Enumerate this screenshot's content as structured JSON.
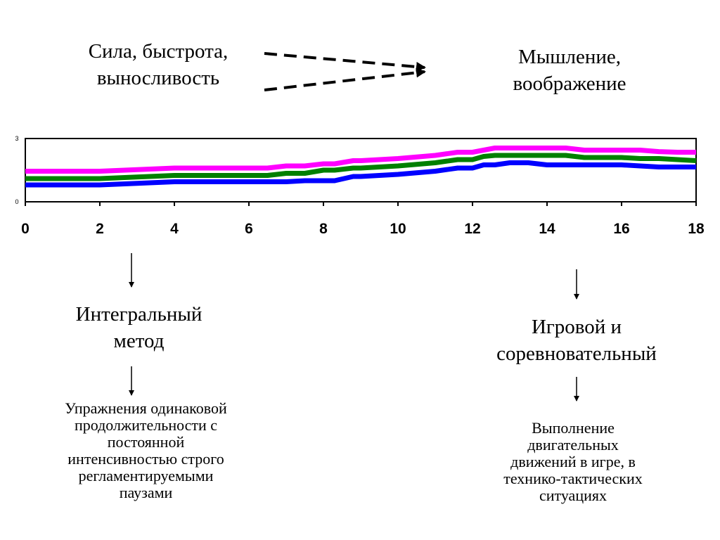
{
  "labels": {
    "top_left": [
      "Сила, быстрота,",
      "выносливость"
    ],
    "top_right": [
      "Мышление,",
      "воображение"
    ],
    "method_left": [
      "Интегральный",
      "метод"
    ],
    "method_right": [
      "Игровой и",
      "соревновательный"
    ],
    "desc_left": [
      "Упражнения одинаковой",
      "продолжительности с",
      "постоянной",
      "интенсивностью строго",
      "регламентируемыми",
      "паузами"
    ],
    "desc_right": [
      "Выполнение",
      "двигательных",
      "движений в игре, в",
      "технико-тактических",
      "ситуациях"
    ]
  },
  "chart_data": {
    "type": "line",
    "xlim": [
      0,
      18
    ],
    "ylim": [
      0,
      3
    ],
    "x_ticks": [
      "0",
      "2",
      "4",
      "6",
      "8",
      "10",
      "12",
      "14",
      "16",
      "18"
    ],
    "y_ticks": [
      "3",
      "0"
    ],
    "grid": false,
    "series": [
      {
        "color": "#ff00ff",
        "x": [
          0,
          2,
          4,
          6,
          6.5,
          7,
          7.5,
          8,
          8.3,
          8.8,
          9,
          10,
          11,
          11.6,
          12,
          12.3,
          12.6,
          13,
          13.5,
          14,
          14.5,
          15,
          15.5,
          16,
          16.5,
          17,
          17.5,
          18
        ],
        "y": [
          1.45,
          1.45,
          1.6,
          1.6,
          1.6,
          1.7,
          1.7,
          1.8,
          1.8,
          1.95,
          1.95,
          2.05,
          2.2,
          2.35,
          2.35,
          2.45,
          2.55,
          2.55,
          2.55,
          2.55,
          2.55,
          2.45,
          2.45,
          2.45,
          2.45,
          2.38,
          2.35,
          2.35
        ]
      },
      {
        "color": "#008000",
        "x": [
          0,
          2,
          4,
          6,
          6.5,
          7,
          7.5,
          8,
          8.3,
          8.8,
          9,
          10,
          11,
          11.6,
          12,
          12.3,
          12.6,
          13,
          13.5,
          14,
          14.5,
          15,
          15.5,
          16,
          16.5,
          17,
          17.5,
          18
        ],
        "y": [
          1.1,
          1.1,
          1.25,
          1.25,
          1.25,
          1.35,
          1.35,
          1.5,
          1.5,
          1.6,
          1.6,
          1.7,
          1.85,
          2.0,
          2.0,
          2.15,
          2.2,
          2.2,
          2.2,
          2.2,
          2.2,
          2.1,
          2.1,
          2.1,
          2.05,
          2.05,
          2.0,
          1.95
        ]
      },
      {
        "color": "#0000ff",
        "x": [
          0,
          2,
          4,
          6,
          6.5,
          7,
          7.5,
          8,
          8.3,
          8.8,
          9,
          10,
          11,
          11.6,
          12,
          12.3,
          12.6,
          13,
          13.5,
          14,
          14.5,
          15,
          15.5,
          16,
          16.5,
          17,
          17.5,
          18
        ],
        "y": [
          0.8,
          0.8,
          0.95,
          0.95,
          0.95,
          0.95,
          1.0,
          1.0,
          1.0,
          1.2,
          1.2,
          1.3,
          1.45,
          1.6,
          1.6,
          1.75,
          1.75,
          1.85,
          1.85,
          1.75,
          1.75,
          1.75,
          1.75,
          1.75,
          1.7,
          1.65,
          1.65,
          1.65
        ]
      }
    ]
  }
}
